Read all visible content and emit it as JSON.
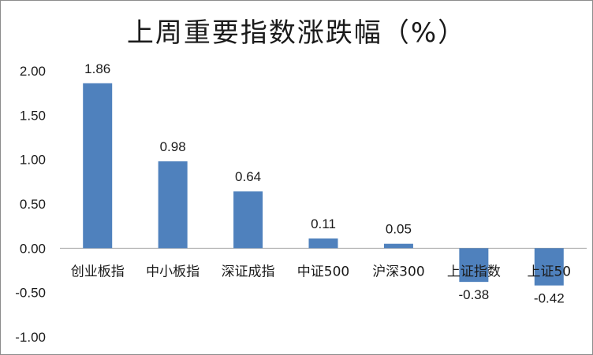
{
  "chart_data": {
    "type": "bar",
    "title": "上周重要指数涨跌幅（%）",
    "categories": [
      "创业板指",
      "中小板指",
      "深证成指",
      "中证500",
      "沪深300",
      "上证指数",
      "上证50"
    ],
    "values": [
      1.86,
      0.98,
      0.64,
      0.11,
      0.05,
      -0.38,
      -0.42
    ],
    "data_labels": [
      "1.86",
      "0.98",
      "0.64",
      "0.11",
      "0.05",
      "-0.38",
      "-0.42"
    ],
    "ylim": [
      -1.0,
      2.0
    ],
    "yticks": [
      2.0,
      1.5,
      1.0,
      0.5,
      0.0,
      -0.5,
      -1.0
    ],
    "ytick_labels": [
      "2.00",
      "1.50",
      "1.00",
      "0.50",
      "0.00",
      "-0.50",
      "-1.00"
    ],
    "xlabel": "",
    "ylabel": "",
    "grid": false,
    "legend": "none",
    "bar_color": "#4f81bd"
  }
}
